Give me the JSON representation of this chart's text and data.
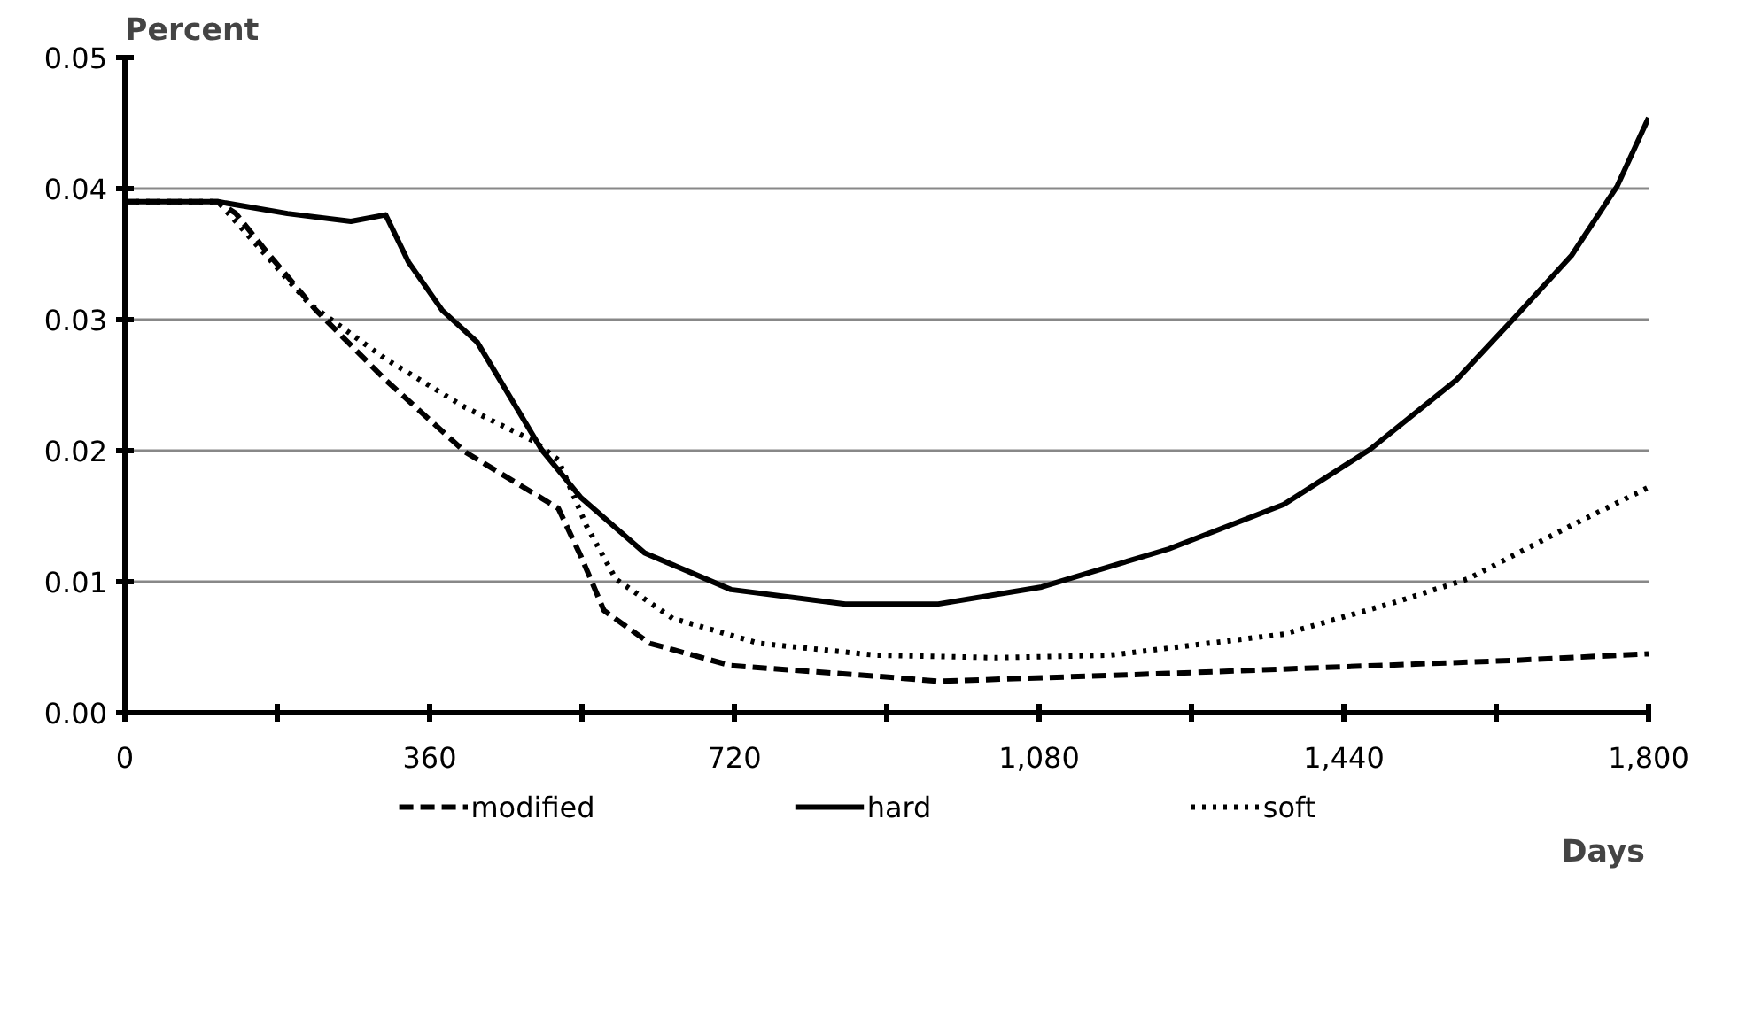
{
  "chart_data": {
    "type": "line",
    "xlabel": "Days",
    "ylabel": "Percent",
    "xlim": [
      0,
      1800
    ],
    "ylim": [
      0,
      0.05
    ],
    "xticks": [
      0,
      {
        "value": 180,
        "label": null
      },
      360,
      {
        "value": 540,
        "label": null
      },
      720,
      {
        "value": 900,
        "label": null
      },
      {
        "value": 1080,
        "label": "1,080"
      },
      {
        "value": 1260,
        "label": null
      },
      {
        "value": 1440,
        "label": "1,440"
      },
      {
        "value": 1620,
        "label": null
      },
      {
        "value": 1800,
        "label": "1,800"
      }
    ],
    "yticks": [
      {
        "value": 0,
        "label": "0.00"
      },
      {
        "value": 0.01,
        "label": "0.01"
      },
      {
        "value": 0.02,
        "label": "0.02"
      },
      {
        "value": 0.03,
        "label": "0.03"
      },
      {
        "value": 0.04,
        "label": "0.04"
      },
      {
        "value": 0.05,
        "label": "0.05"
      }
    ],
    "grid": "y",
    "legend": "bottom",
    "series": [
      {
        "name": "modified",
        "color": "#000000",
        "line_style": "dashed",
        "x": [
          0,
          110,
          131,
          171,
          226,
          308,
          402,
          512,
          539,
          566,
          620,
          716,
          886,
          961,
          1233,
          1437,
          1641,
          1800
        ],
        "values": [
          0.039,
          0.039,
          0.0381,
          0.0349,
          0.0307,
          0.0254,
          0.0199,
          0.0156,
          0.0119,
          0.0078,
          0.0053,
          0.0036,
          0.0028,
          0.0024,
          0.003,
          0.0035,
          0.004,
          0.0045
        ]
      },
      {
        "name": "hard",
        "color": "#000000",
        "line_style": "solid",
        "x": [
          0,
          110,
          192,
          267,
          308,
          335,
          375,
          416,
          443,
          492,
          539,
          614,
          716,
          851,
          961,
          1083,
          1233,
          1369,
          1471,
          1573,
          1641,
          1709,
          1763,
          1800
        ],
        "values": [
          0.039,
          0.039,
          0.0381,
          0.0375,
          0.038,
          0.0344,
          0.0307,
          0.0283,
          0.0254,
          0.0201,
          0.0164,
          0.0122,
          0.0094,
          0.0083,
          0.0083,
          0.0096,
          0.0125,
          0.0159,
          0.0201,
          0.0254,
          0.0301,
          0.0349,
          0.0402,
          0.0454
        ]
      },
      {
        "name": "soft",
        "color": "#000000",
        "line_style": "dotted",
        "x": [
          0,
          110,
          218,
          308,
          402,
          484,
          512,
          545,
          580,
          647,
          749,
          886,
          1029,
          1165,
          1369,
          1504,
          1586,
          1709,
          1800
        ],
        "values": [
          0.039,
          0.039,
          0.0312,
          0.027,
          0.0233,
          0.0207,
          0.0193,
          0.0143,
          0.0102,
          0.0072,
          0.0053,
          0.0044,
          0.0042,
          0.0044,
          0.006,
          0.0085,
          0.0102,
          0.0143,
          0.0172
        ]
      }
    ]
  }
}
